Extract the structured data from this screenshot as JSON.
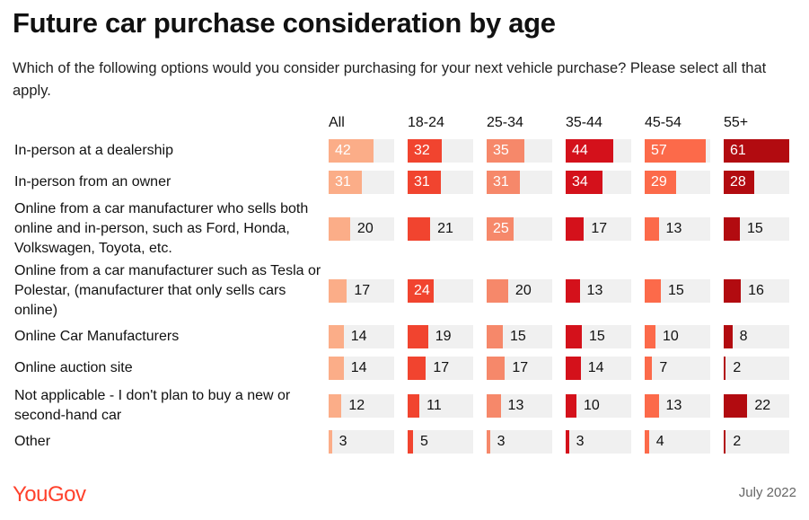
{
  "header": {
    "title": "Future car purchase consideration by age",
    "subtitle": "Which of the following options would you consider purchasing for your next vehicle purchase? Please select all that apply."
  },
  "footer": {
    "logo": "YouGov",
    "date": "July 2022"
  },
  "colors": {
    "All": "#fbad88",
    "18-24": "#f1442f",
    "25-34": "#f6886a",
    "35-44": "#d4111b",
    "45-54": "#fc6a4a",
    "55+": "#b20b10",
    "track": "#f0f0f0"
  },
  "chart_data": {
    "type": "bar",
    "title": "Future car purchase consideration by age",
    "xlim": [
      0,
      61
    ],
    "series": [
      {
        "name": "All",
        "values": [
          42,
          31,
          20,
          17,
          14,
          14,
          12,
          3
        ]
      },
      {
        "name": "18-24",
        "values": [
          32,
          31,
          21,
          24,
          19,
          17,
          11,
          5
        ]
      },
      {
        "name": "25-34",
        "values": [
          35,
          31,
          25,
          20,
          15,
          17,
          13,
          3
        ]
      },
      {
        "name": "35-44",
        "values": [
          44,
          34,
          17,
          13,
          15,
          14,
          10,
          3
        ]
      },
      {
        "name": "45-54",
        "values": [
          57,
          29,
          13,
          15,
          10,
          7,
          13,
          4
        ]
      },
      {
        "name": "55+",
        "values": [
          61,
          28,
          15,
          16,
          8,
          2,
          22,
          2
        ]
      }
    ],
    "categories": [
      "In-person at a dealership",
      "In-person from an owner",
      "Online from a car manufacturer who sells both online and in-person, such as Ford, Honda, Volkswagen, Toyota, etc.",
      "Online from a car manufacturer such as Tesla or Polestar, (manufacturer that only sells cars online)",
      "Online Car Manufacturers",
      "Online auction site",
      "Not applicable - I don't plan to buy a new or second-hand car",
      "Other"
    ]
  }
}
